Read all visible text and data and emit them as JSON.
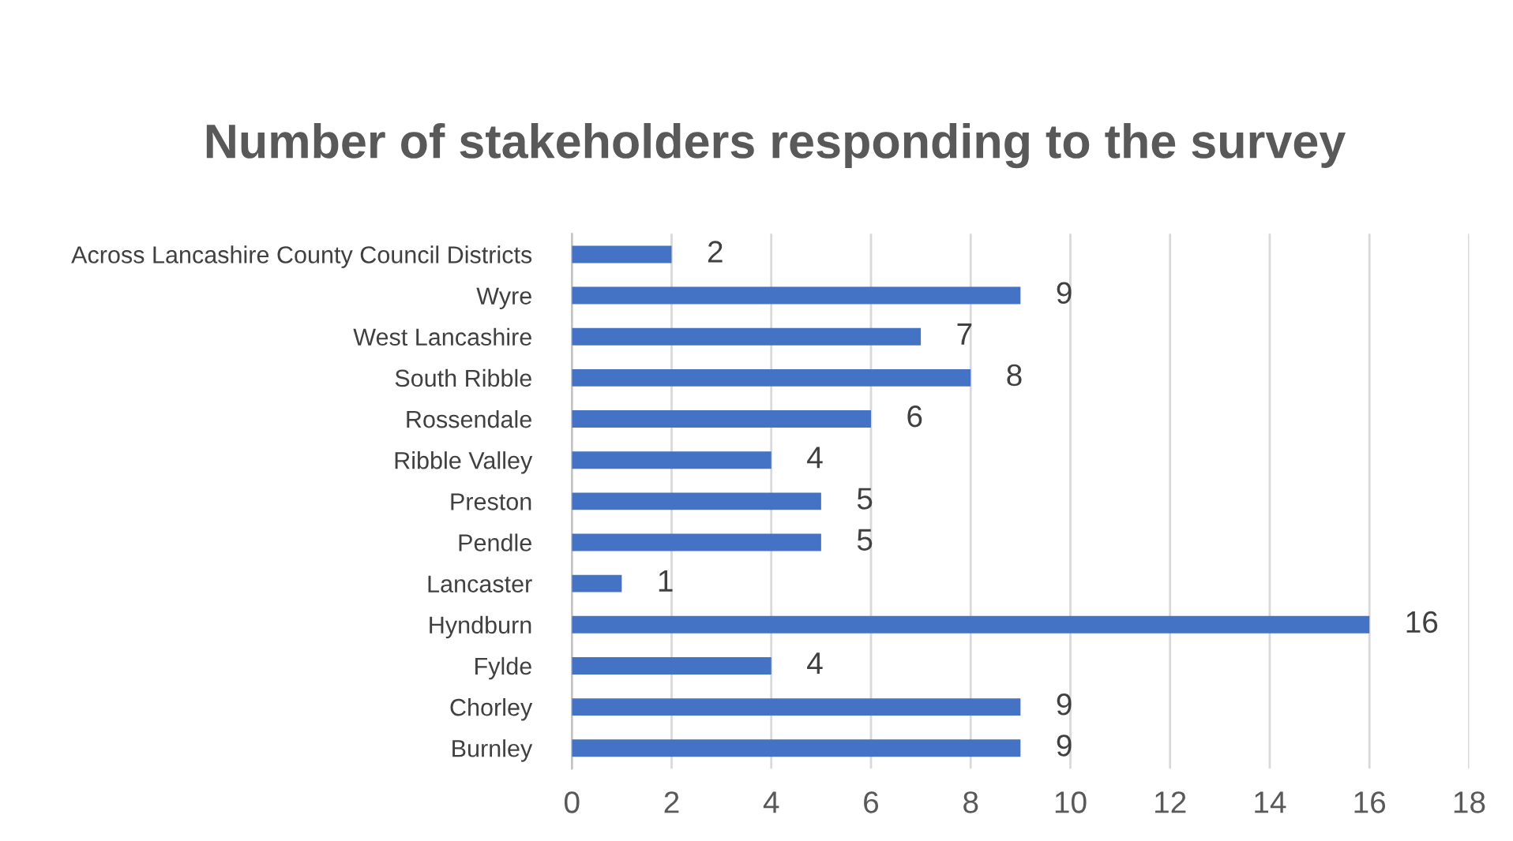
{
  "chart_data": {
    "type": "bar",
    "orientation": "horizontal",
    "title": "Number of stakeholders responding to the survey",
    "categories": [
      "Across Lancashire County Council Districts",
      "Wyre",
      "West Lancashire",
      "South Ribble",
      "Rossendale",
      "Ribble Valley",
      "Preston",
      "Pendle",
      "Lancaster",
      "Hyndburn",
      "Fylde",
      "Chorley",
      "Burnley"
    ],
    "values": [
      2,
      9,
      7,
      8,
      6,
      4,
      5,
      5,
      1,
      16,
      4,
      9,
      9
    ],
    "color": "#4472c4",
    "xlim": [
      0,
      18
    ],
    "xticks": [
      0,
      2,
      4,
      6,
      8,
      10,
      12,
      14,
      16,
      18
    ],
    "grid": "x",
    "data_labels": true,
    "legend": false
  }
}
